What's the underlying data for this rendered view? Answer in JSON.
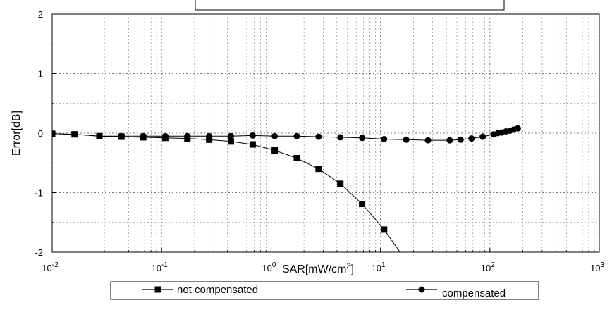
{
  "chart_data": {
    "type": "line",
    "title": "",
    "xlabel": "SAR[mW/cm³]",
    "ylabel": "Error[dB]",
    "x_scale": "log",
    "xlim": [
      0.01,
      1000
    ],
    "ylim": [
      -2,
      2
    ],
    "grid": true,
    "legend_position": "bottom",
    "x_tick_labels": [
      {
        "base": "10",
        "exp": "-2"
      },
      {
        "base": "10",
        "exp": "-1"
      },
      {
        "base": "10",
        "exp": "0"
      },
      {
        "base": "10",
        "exp": "1"
      },
      {
        "base": "10",
        "exp": "2"
      },
      {
        "base": "10",
        "exp": "3"
      }
    ],
    "y_tick_labels": [
      "2",
      "1",
      "0",
      "-1",
      "-2"
    ],
    "series": [
      {
        "name": "not compensated",
        "marker": "square",
        "color": "#000000",
        "x": [
          0.01,
          0.016,
          0.027,
          0.043,
          0.068,
          0.108,
          0.172,
          0.272,
          0.43,
          0.68,
          1.08,
          1.72,
          2.72,
          4.3,
          6.8,
          10.8,
          16.5
        ],
        "y": [
          -0.01,
          -0.02,
          -0.05,
          -0.06,
          -0.07,
          -0.08,
          -0.09,
          -0.11,
          -0.14,
          -0.19,
          -0.29,
          -0.42,
          -0.6,
          -0.85,
          -1.19,
          -1.62,
          -2.1
        ]
      },
      {
        "name": "compensated",
        "marker": "circle",
        "color": "#000000",
        "x": [
          0.01,
          0.016,
          0.027,
          0.043,
          0.068,
          0.108,
          0.172,
          0.272,
          0.43,
          0.68,
          1.08,
          1.72,
          2.72,
          4.3,
          6.8,
          10.8,
          17.2,
          27.2,
          43,
          54,
          68,
          86,
          108,
          118,
          128,
          140,
          152,
          165,
          180
        ],
        "y": [
          -0.01,
          -0.02,
          -0.05,
          -0.05,
          -0.05,
          -0.05,
          -0.05,
          -0.05,
          -0.05,
          -0.04,
          -0.05,
          -0.05,
          -0.06,
          -0.07,
          -0.08,
          -0.1,
          -0.11,
          -0.12,
          -0.12,
          -0.11,
          -0.09,
          -0.06,
          -0.02,
          0.0,
          0.01,
          0.03,
          0.04,
          0.06,
          0.08
        ]
      }
    ]
  }
}
